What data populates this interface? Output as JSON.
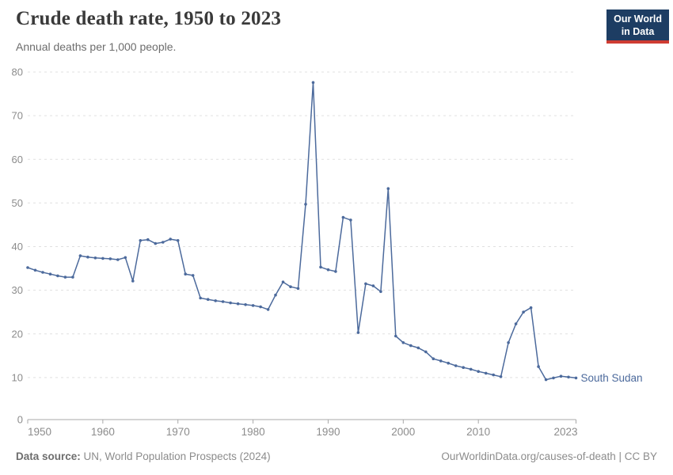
{
  "header": {
    "title": "Crude death rate, 1950 to 2023",
    "subtitle": "Annual deaths per 1,000 people."
  },
  "logo": {
    "line1": "Our World",
    "line2": "in Data",
    "bg_color": "#1d3d63",
    "accent_color": "#cf3c32"
  },
  "chart_data": {
    "type": "line",
    "title": "Crude death rate, 1950 to 2023",
    "xlabel": "",
    "ylabel": "Annual deaths per 1,000 people",
    "ylim": [
      0,
      80
    ],
    "yticks": [
      0,
      10,
      20,
      30,
      40,
      50,
      60,
      70,
      80
    ],
    "xticks": [
      1950,
      1960,
      1970,
      1980,
      1990,
      2000,
      2010,
      2023
    ],
    "grid": true,
    "legend": "end-of-line-label",
    "x": [
      1950,
      1951,
      1952,
      1953,
      1954,
      1955,
      1956,
      1957,
      1958,
      1959,
      1960,
      1961,
      1962,
      1963,
      1964,
      1965,
      1966,
      1967,
      1968,
      1969,
      1970,
      1971,
      1972,
      1973,
      1974,
      1975,
      1976,
      1977,
      1978,
      1979,
      1980,
      1981,
      1982,
      1983,
      1984,
      1985,
      1986,
      1987,
      1988,
      1989,
      1990,
      1991,
      1992,
      1993,
      1994,
      1995,
      1996,
      1997,
      1998,
      1999,
      2000,
      2001,
      2002,
      2003,
      2004,
      2005,
      2006,
      2007,
      2008,
      2009,
      2010,
      2011,
      2012,
      2013,
      2014,
      2015,
      2016,
      2017,
      2018,
      2019,
      2020,
      2021,
      2022,
      2023
    ],
    "series": [
      {
        "name": "South Sudan",
        "color": "#4c6a9c",
        "values": [
          35.2,
          34.6,
          34.1,
          33.7,
          33.3,
          33.0,
          33.0,
          37.9,
          37.6,
          37.4,
          37.3,
          37.2,
          37.0,
          37.5,
          32.1,
          41.4,
          41.6,
          40.7,
          41.0,
          41.7,
          41.4,
          33.7,
          33.4,
          28.2,
          27.9,
          27.6,
          27.4,
          27.1,
          26.9,
          26.7,
          26.5,
          26.2,
          25.6,
          28.9,
          31.9,
          30.8,
          30.4,
          49.7,
          77.6,
          35.3,
          34.7,
          34.3,
          46.7,
          46.1,
          20.3,
          31.5,
          31.0,
          29.7,
          53.3,
          19.5,
          18.0,
          17.3,
          16.8,
          15.9,
          14.3,
          13.8,
          13.3,
          12.7,
          12.3,
          11.9,
          11.4,
          11.0,
          10.6,
          10.2,
          18.0,
          22.3,
          25.0,
          26.0,
          12.5,
          9.5,
          9.9,
          10.3,
          10.1,
          9.9
        ]
      }
    ],
    "colors": {
      "grid": "#e0e0e0",
      "axis": "#a8a8a8",
      "tick_label": "#8c8c8c",
      "line": "#4c6a9c"
    }
  },
  "footer": {
    "source_label": "Data source:",
    "source_text": " UN, World Population Prospects (2024)",
    "credit": "OurWorldinData.org/causes-of-death | CC BY"
  }
}
